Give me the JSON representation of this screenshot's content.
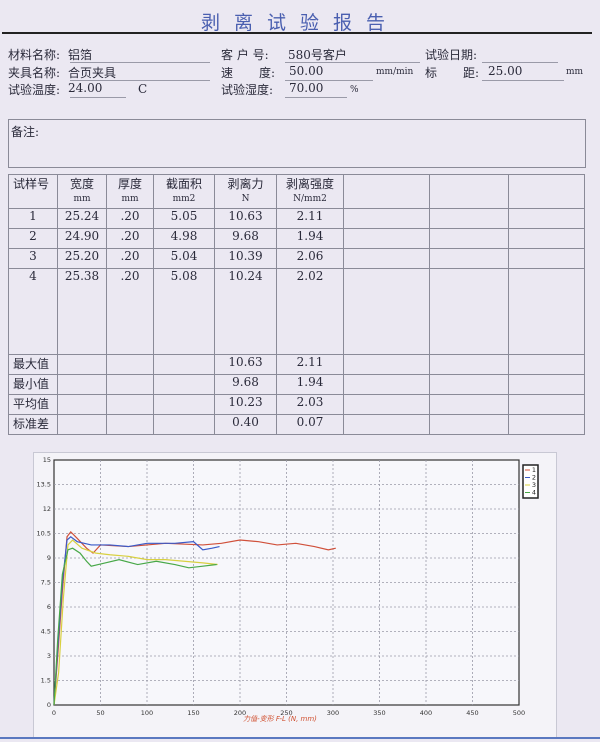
{
  "title": "剥离试验报告",
  "info": {
    "material_label": "材料名称:",
    "material_value": "铝箔",
    "customer_label": "客 户 号:",
    "customer_value": "580号客户",
    "date_label": "试验日期:",
    "date_value": "",
    "fixture_label": "夹具名称:",
    "fixture_value": "合页夹具",
    "speed_label_1": "速",
    "speed_label_2": "度:",
    "speed_value": "50.00",
    "speed_unit": "mm/min",
    "gauge_label_1": "标",
    "gauge_label_2": "距:",
    "gauge_value": "25.00",
    "gauge_unit": "mm",
    "temp_label": "试验温度:",
    "temp_value": "24.00",
    "temp_unit": "C",
    "humidity_label": "试验湿度:",
    "humidity_value": "70.00",
    "humidity_unit": "%"
  },
  "remarks": {
    "label": "备注:",
    "value": ""
  },
  "table": {
    "headers": [
      {
        "name": "试样号",
        "unit": ""
      },
      {
        "name": "宽度",
        "unit": "mm"
      },
      {
        "name": "厚度",
        "unit": "mm"
      },
      {
        "name": "截面积",
        "unit": "mm2"
      },
      {
        "name": "剥离力",
        "unit": "N"
      },
      {
        "name": "剥离强度",
        "unit": "N/mm2"
      }
    ],
    "rows": [
      [
        "1",
        "25.24",
        ".20",
        "5.05",
        "10.63",
        "2.11"
      ],
      [
        "2",
        "24.90",
        ".20",
        "4.98",
        "9.68",
        "1.94"
      ],
      [
        "3",
        "25.20",
        ".20",
        "5.04",
        "10.39",
        "2.06"
      ],
      [
        "4",
        "25.38",
        ".20",
        "5.08",
        "10.24",
        "2.02"
      ]
    ],
    "stats": [
      [
        "最大值",
        "10.63",
        "2.11"
      ],
      [
        "最小值",
        "9.68",
        "1.94"
      ],
      [
        "平均值",
        "10.23",
        "2.03"
      ],
      [
        "标准差",
        "0.40",
        "0.07"
      ]
    ]
  },
  "chart_data": {
    "type": "line",
    "xlabel": "力值-变形 F-L   (N, mm)",
    "xlim": [
      0,
      500
    ],
    "ylim": [
      0,
      15
    ],
    "xticks": [
      "0",
      "50",
      "100",
      "150",
      "200",
      "250",
      "300",
      "350",
      "400",
      "450",
      "500"
    ],
    "yticks": [
      "0",
      "1.5",
      "3",
      "4.5",
      "6",
      "7.5",
      "9",
      "10.5",
      "12",
      "13.5",
      "15"
    ],
    "grid": true,
    "legend": "top-right",
    "series": [
      {
        "name": "1",
        "color": "#d0503a",
        "points": [
          [
            0,
            0
          ],
          [
            4,
            3
          ],
          [
            9,
            7
          ],
          [
            14,
            10.3
          ],
          [
            18,
            10.6
          ],
          [
            25,
            10.2
          ],
          [
            35,
            9.6
          ],
          [
            42,
            9.3
          ],
          [
            50,
            9.8
          ],
          [
            80,
            9.7
          ],
          [
            120,
            9.9
          ],
          [
            160,
            9.8
          ],
          [
            180,
            9.9
          ],
          [
            200,
            10.1
          ],
          [
            220,
            10.0
          ],
          [
            240,
            9.8
          ],
          [
            260,
            9.9
          ],
          [
            280,
            9.7
          ],
          [
            295,
            9.5
          ],
          [
            303,
            9.6
          ]
        ]
      },
      {
        "name": "2",
        "color": "#3a5ac8",
        "points": [
          [
            0,
            0
          ],
          [
            4,
            3.5
          ],
          [
            9,
            7.5
          ],
          [
            14,
            10.1
          ],
          [
            18,
            10.3
          ],
          [
            25,
            10.0
          ],
          [
            40,
            9.8
          ],
          [
            60,
            9.8
          ],
          [
            80,
            9.7
          ],
          [
            100,
            9.9
          ],
          [
            130,
            9.9
          ],
          [
            150,
            10.0
          ],
          [
            160,
            9.5
          ],
          [
            170,
            9.6
          ],
          [
            178,
            9.7
          ]
        ]
      },
      {
        "name": "3",
        "color": "#d8d040",
        "points": [
          [
            0,
            0
          ],
          [
            5,
            2
          ],
          [
            10,
            6.5
          ],
          [
            15,
            9.8
          ],
          [
            20,
            10.1
          ],
          [
            30,
            9.6
          ],
          [
            45,
            9.3
          ],
          [
            60,
            9.2
          ],
          [
            80,
            9.1
          ],
          [
            100,
            8.9
          ],
          [
            120,
            8.9
          ],
          [
            140,
            8.8
          ],
          [
            160,
            8.7
          ],
          [
            176,
            8.6
          ]
        ]
      },
      {
        "name": "4",
        "color": "#48a848",
        "points": [
          [
            0,
            0
          ],
          [
            4,
            4
          ],
          [
            9,
            8
          ],
          [
            15,
            9.5
          ],
          [
            20,
            9.6
          ],
          [
            28,
            9.3
          ],
          [
            35,
            8.8
          ],
          [
            40,
            8.5
          ],
          [
            55,
            8.7
          ],
          [
            70,
            8.9
          ],
          [
            90,
            8.6
          ],
          [
            110,
            8.8
          ],
          [
            130,
            8.6
          ],
          [
            145,
            8.4
          ],
          [
            160,
            8.5
          ],
          [
            175,
            8.6
          ]
        ]
      }
    ]
  }
}
